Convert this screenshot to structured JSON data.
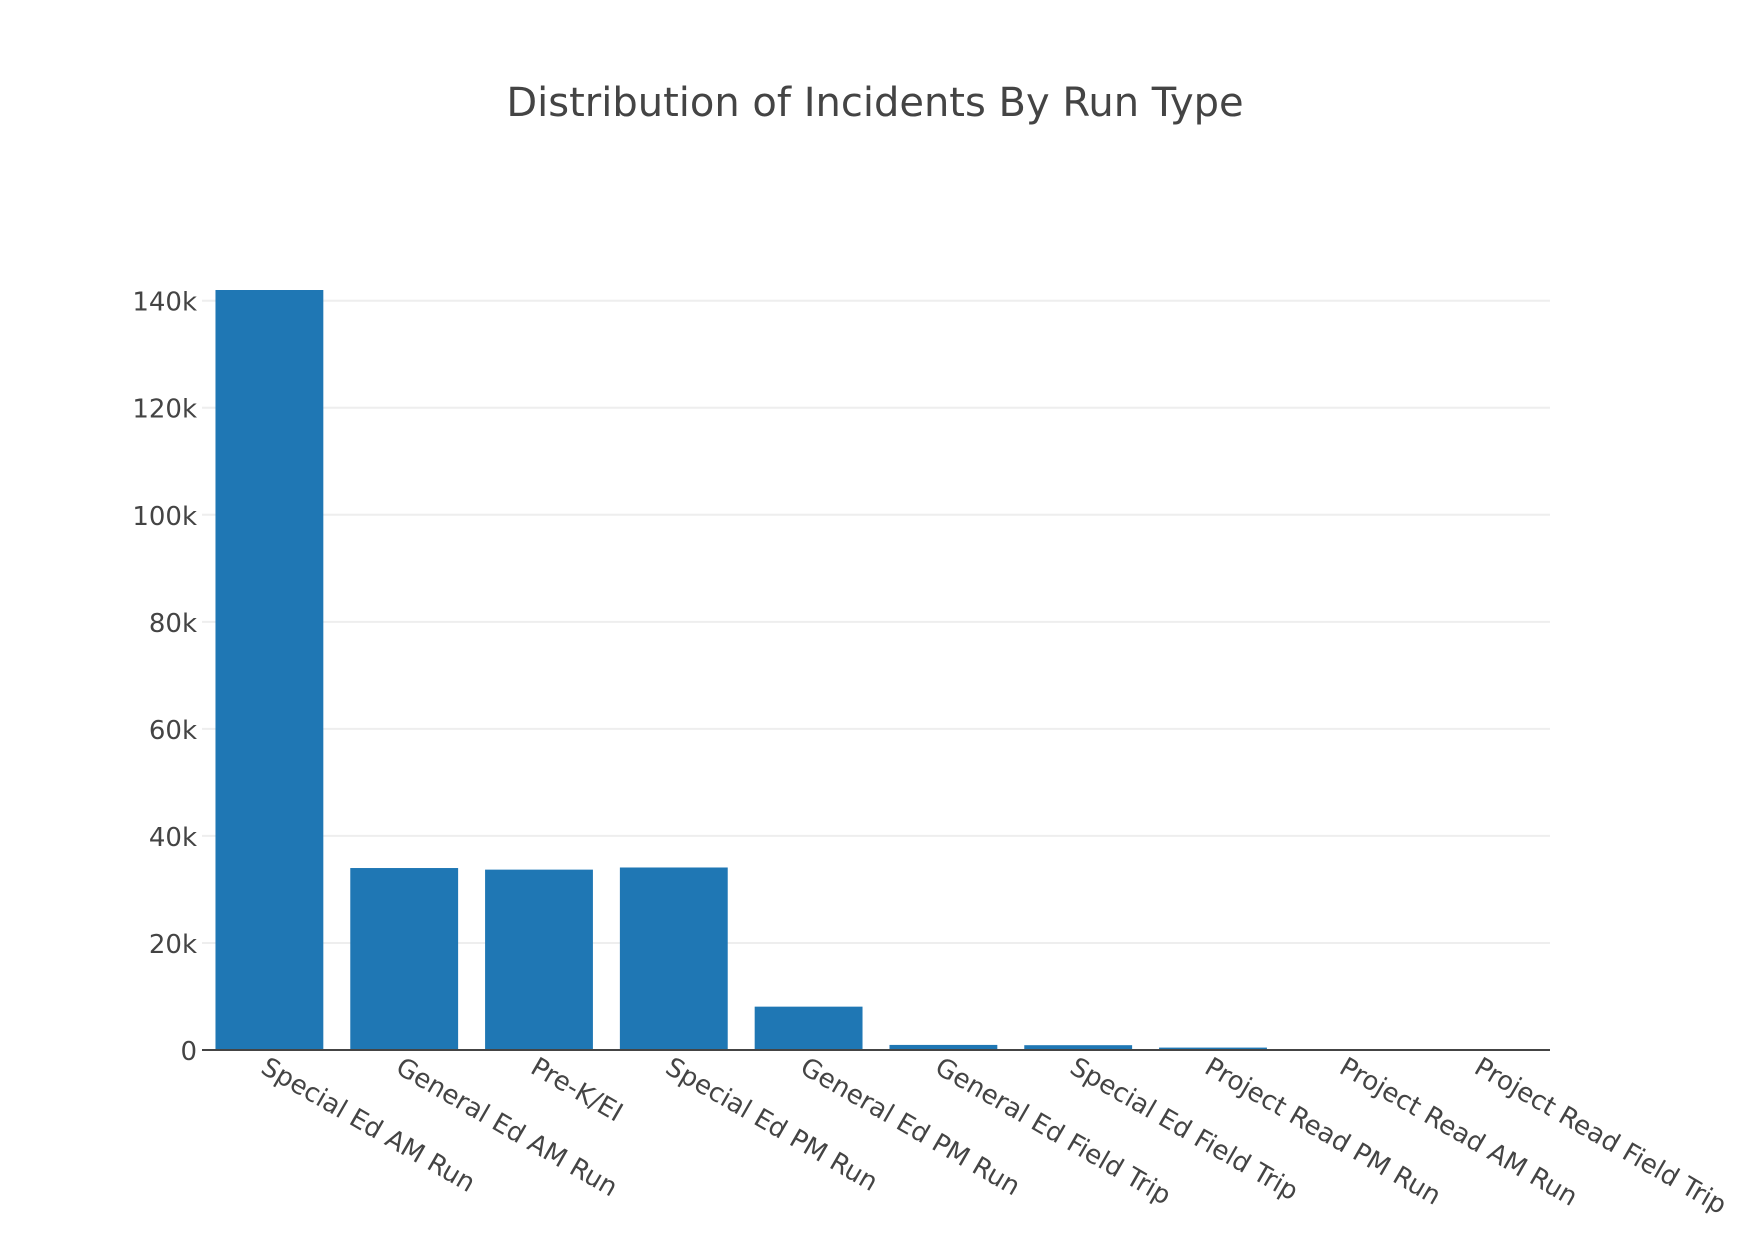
{
  "chart_data": {
    "type": "bar",
    "title": "Distribution of Incidents By Run Type",
    "xlabel": "",
    "ylabel": "",
    "categories": [
      "Special Ed AM Run",
      "General Ed AM Run",
      "Pre-K/EI",
      "Special Ed PM Run",
      "General Ed PM Run",
      "General Ed Field Trip",
      "Special Ed Field Trip",
      "Project Read PM Run",
      "Project Read AM Run",
      "Project Read Field Trip"
    ],
    "values": [
      142000,
      34000,
      33700,
      34100,
      8100,
      950,
      900,
      450,
      80,
      40
    ],
    "ylim": [
      0,
      142000
    ],
    "yticks": [
      0,
      20000,
      40000,
      60000,
      80000,
      100000,
      120000,
      140000
    ],
    "ytick_labels": [
      "0",
      "20k",
      "40k",
      "60k",
      "80k",
      "100k",
      "120k",
      "140k"
    ],
    "grid": true,
    "legend": "none",
    "colors": {
      "bar": "#1f77b4",
      "grid": "#eeeeee",
      "axis": "#444444",
      "text": "#444444"
    }
  }
}
